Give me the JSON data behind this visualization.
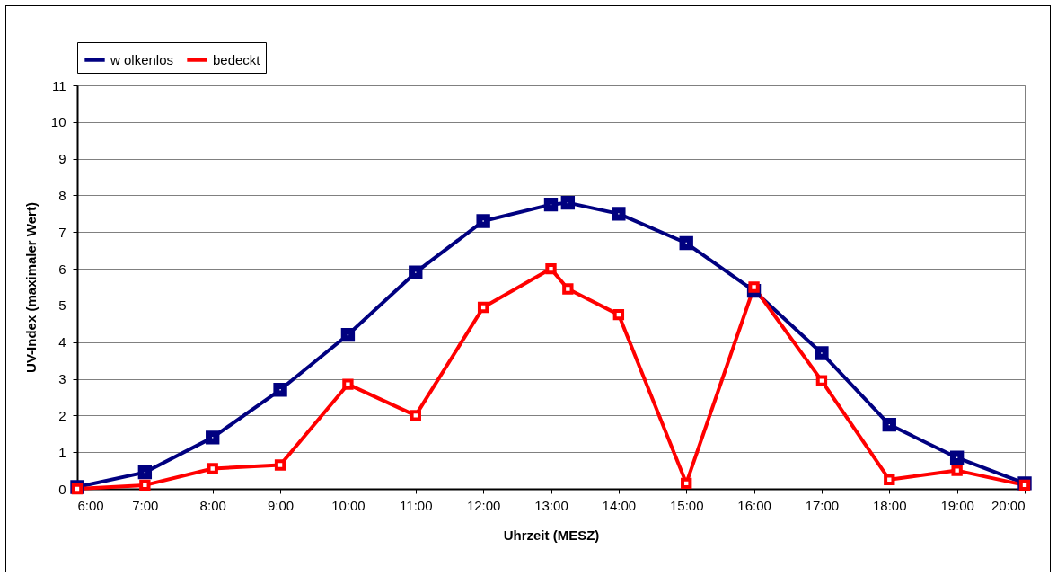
{
  "chart_data": {
    "type": "line",
    "xlabel": "Uhrzeit (MESZ)",
    "ylabel": "UV-Index (maximaler Wert)",
    "x": [
      6,
      7,
      8,
      9,
      10,
      11,
      12,
      13,
      13.25,
      14,
      15,
      16,
      17,
      18,
      19,
      20
    ],
    "series": [
      {
        "name": "w olkenlos",
        "color": "#000080",
        "values": [
          0.05,
          0.45,
          1.4,
          2.7,
          4.2,
          5.9,
          7.3,
          7.75,
          7.8,
          7.5,
          6.7,
          5.4,
          3.7,
          1.75,
          0.85,
          0.15
        ]
      },
      {
        "name": "bedeckt",
        "color": "#ff0000",
        "values": [
          0.0,
          0.1,
          0.55,
          0.65,
          2.85,
          2.0,
          4.95,
          6.0,
          5.45,
          4.75,
          0.15,
          5.5,
          2.95,
          0.25,
          0.5,
          0.1
        ]
      }
    ],
    "xlim": [
      6,
      20
    ],
    "xticks": [
      {
        "value": 6,
        "label": "6:00"
      },
      {
        "value": 7,
        "label": "7:00"
      },
      {
        "value": 8,
        "label": "8:00"
      },
      {
        "value": 9,
        "label": "9:00"
      },
      {
        "value": 10,
        "label": "10:00"
      },
      {
        "value": 11,
        "label": "11:00"
      },
      {
        "value": 12,
        "label": "12:00"
      },
      {
        "value": 13,
        "label": "13:00"
      },
      {
        "value": 14,
        "label": "14:00"
      },
      {
        "value": 15,
        "label": "15:00"
      },
      {
        "value": 16,
        "label": "16:00"
      },
      {
        "value": 17,
        "label": "17:00"
      },
      {
        "value": 18,
        "label": "18:00"
      },
      {
        "value": 19,
        "label": "19:00"
      },
      {
        "value": 20,
        "label": "20:00"
      }
    ],
    "ylim": [
      0,
      11
    ],
    "yticks": [
      0,
      1,
      2,
      3,
      4,
      5,
      6,
      7,
      8,
      9,
      10,
      11
    ],
    "grid": "y",
    "legend": "top",
    "marker": "square",
    "line_style": "solid"
  }
}
